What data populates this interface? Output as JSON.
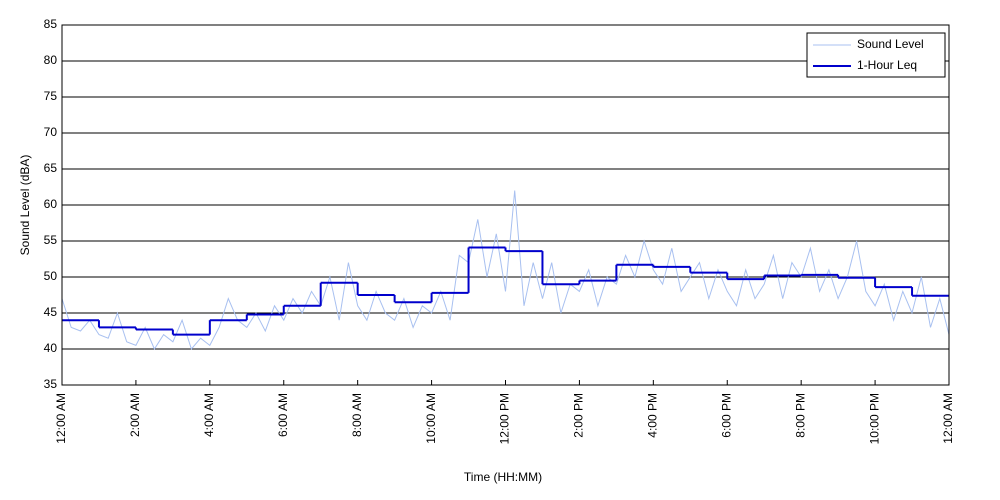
{
  "chart_data": {
    "type": "line",
    "xlabel": "Time (HH:MM)",
    "ylabel": "Sound Level (dBA)",
    "xlim": [
      0,
      24
    ],
    "xticks": [
      {
        "value": 0,
        "label": "12:00 AM"
      },
      {
        "value": 2,
        "label": "2:00 AM"
      },
      {
        "value": 4,
        "label": "4:00 AM"
      },
      {
        "value": 6,
        "label": "6:00 AM"
      },
      {
        "value": 8,
        "label": "8:00 AM"
      },
      {
        "value": 10,
        "label": "10:00 AM"
      },
      {
        "value": 12,
        "label": "12:00 PM"
      },
      {
        "value": 14,
        "label": "2:00 PM"
      },
      {
        "value": 16,
        "label": "4:00 PM"
      },
      {
        "value": 18,
        "label": "6:00 PM"
      },
      {
        "value": 20,
        "label": "8:00 PM"
      },
      {
        "value": 22,
        "label": "10:00 PM"
      },
      {
        "value": 24,
        "label": "12:00 AM"
      }
    ],
    "ylim": [
      35,
      85
    ],
    "yticks": [
      35,
      40,
      45,
      50,
      55,
      60,
      65,
      70,
      75,
      80,
      85
    ],
    "grid": true,
    "legend": "upper right",
    "series": [
      {
        "name": "Sound Level",
        "color": "#a8c0f0",
        "x": [
          0,
          0.25,
          0.5,
          0.75,
          1,
          1.25,
          1.5,
          1.75,
          2,
          2.25,
          2.5,
          2.75,
          3,
          3.25,
          3.5,
          3.75,
          4,
          4.25,
          4.5,
          4.75,
          5,
          5.25,
          5.5,
          5.75,
          6,
          6.25,
          6.5,
          6.75,
          7,
          7.25,
          7.5,
          7.75,
          8,
          8.25,
          8.5,
          8.75,
          9,
          9.25,
          9.5,
          9.75,
          10,
          10.25,
          10.5,
          10.75,
          11,
          11.25,
          11.5,
          11.75,
          12,
          12.25,
          12.5,
          12.75,
          13,
          13.25,
          13.5,
          13.75,
          14,
          14.25,
          14.5,
          14.75,
          15,
          15.25,
          15.5,
          15.75,
          16,
          16.25,
          16.5,
          16.75,
          17,
          17.25,
          17.5,
          17.75,
          18,
          18.25,
          18.5,
          18.75,
          19,
          19.25,
          19.5,
          19.75,
          20,
          20.25,
          20.5,
          20.75,
          21,
          21.25,
          21.5,
          21.75,
          22,
          22.25,
          22.5,
          22.75,
          23,
          23.25,
          23.5,
          23.75,
          24
        ],
        "values": [
          47,
          43,
          42.5,
          44,
          42,
          41.5,
          45,
          41,
          40.5,
          43,
          40,
          42,
          41,
          44,
          40,
          41.5,
          40.5,
          43,
          47,
          44,
          43,
          45,
          42.5,
          46,
          44,
          47,
          45,
          48,
          46,
          50,
          44,
          52,
          46,
          44,
          48,
          45,
          44,
          47,
          43,
          46,
          45,
          48,
          44,
          53,
          52,
          58,
          50,
          56,
          48,
          62,
          46,
          52,
          47,
          52,
          45,
          49,
          48,
          51,
          46,
          50,
          49,
          53,
          50,
          55,
          51,
          49,
          54,
          48,
          50,
          52,
          47,
          51,
          48,
          46,
          51,
          47,
          49,
          53,
          47,
          52,
          50,
          54,
          48,
          51,
          47,
          50,
          55,
          48,
          46,
          49,
          44,
          48,
          45,
          50,
          43,
          47,
          42
        ]
      },
      {
        "name": "1-Hour Leq",
        "color": "#0000cc",
        "step": "post",
        "x": [
          0,
          1,
          2,
          3,
          4,
          5,
          6,
          7,
          8,
          9,
          10,
          11,
          12,
          13,
          14,
          15,
          16,
          17,
          18,
          19,
          20,
          21,
          22,
          23
        ],
        "values": [
          44,
          43,
          42.7,
          42,
          44,
          44.8,
          46,
          49.2,
          47.5,
          46.5,
          47.8,
          54.1,
          53.6,
          49,
          49.5,
          51.7,
          51.4,
          50.6,
          49.7,
          50.2,
          50.3,
          49.9,
          48.6,
          47.4
        ]
      }
    ]
  }
}
